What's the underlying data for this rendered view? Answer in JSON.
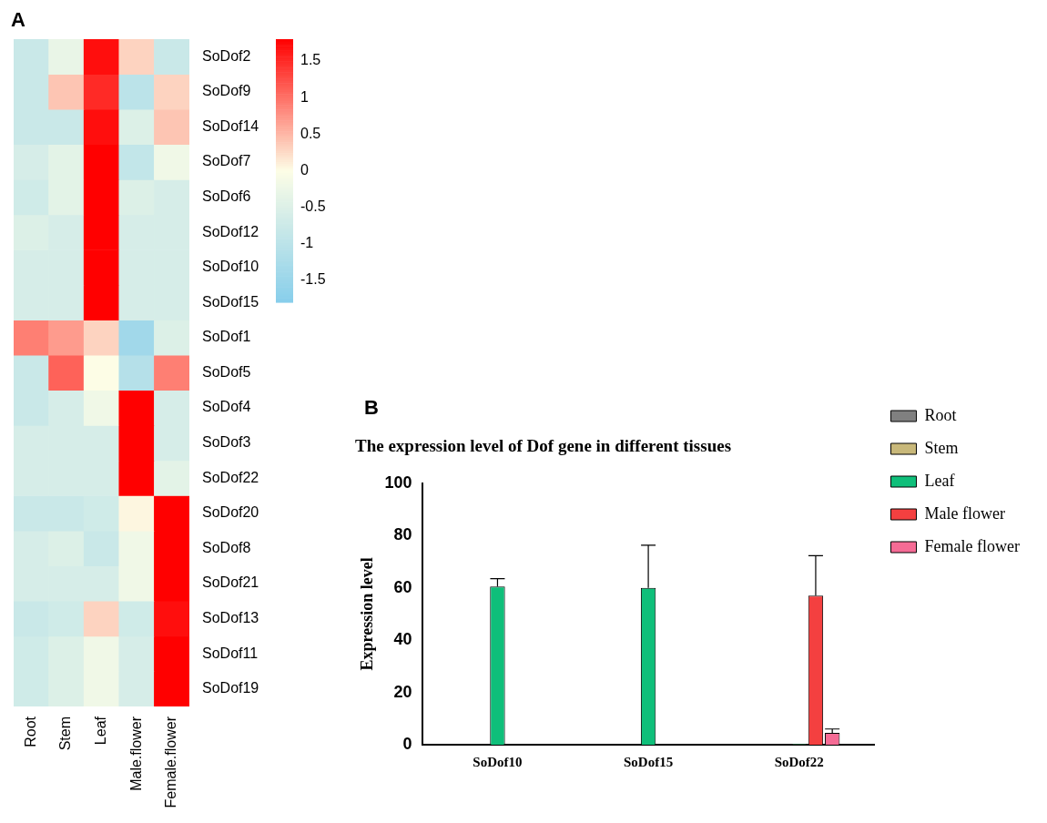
{
  "chart_data": [
    {
      "type": "heatmap",
      "annotations": [
        "A"
      ],
      "categories": [
        "Root",
        "Stem",
        "Leaf",
        "Male.flower",
        "Female.flower"
      ],
      "y_categories": [
        "SoDof2",
        "SoDof9",
        "SoDof14",
        "SoDof7",
        "SoDof6",
        "SoDof12",
        "SoDof10",
        "SoDof15",
        "SoDof1",
        "SoDof5",
        "SoDof4",
        "SoDof3",
        "SoDof22",
        "SoDof20",
        "SoDof8",
        "SoDof21",
        "SoDof13",
        "SoDof11",
        "SoDof19"
      ],
      "cells": [
        [
          -0.8,
          -0.3,
          1.7,
          0.3,
          -0.8
        ],
        [
          -0.8,
          0.4,
          1.5,
          -1.0,
          0.3
        ],
        [
          -0.8,
          -0.8,
          1.7,
          -0.5,
          0.4
        ],
        [
          -0.6,
          -0.4,
          1.8,
          -0.9,
          -0.2
        ],
        [
          -0.7,
          -0.4,
          1.8,
          -0.5,
          -0.6
        ],
        [
          -0.5,
          -0.6,
          1.8,
          -0.6,
          -0.6
        ],
        [
          -0.6,
          -0.6,
          1.8,
          -0.6,
          -0.6
        ],
        [
          -0.6,
          -0.6,
          1.8,
          -0.6,
          -0.6
        ],
        [
          0.9,
          0.7,
          0.3,
          -1.4,
          -0.5
        ],
        [
          -0.8,
          1.1,
          0.0,
          -1.1,
          0.9
        ],
        [
          -0.8,
          -0.6,
          -0.2,
          1.8,
          -0.6
        ],
        [
          -0.6,
          -0.6,
          -0.6,
          1.8,
          -0.6
        ],
        [
          -0.6,
          -0.6,
          -0.6,
          1.8,
          -0.4
        ],
        [
          -0.8,
          -0.8,
          -0.7,
          0.05,
          1.8
        ],
        [
          -0.6,
          -0.5,
          -0.8,
          -0.2,
          1.8
        ],
        [
          -0.6,
          -0.6,
          -0.6,
          -0.2,
          1.8
        ],
        [
          -0.8,
          -0.7,
          0.3,
          -0.7,
          1.7
        ],
        [
          -0.7,
          -0.5,
          -0.2,
          -0.6,
          1.8
        ],
        [
          -0.7,
          -0.5,
          -0.2,
          -0.6,
          1.8
        ]
      ],
      "clim": [
        -1.8,
        1.8
      ],
      "cticks": [
        -1.5,
        -1,
        -0.5,
        0,
        0.5,
        1,
        1.5
      ]
    },
    {
      "type": "bar",
      "annotations": [
        "B"
      ],
      "title": "The expression level of Dof gene in different tissues",
      "ylabel": "Expression level",
      "categories": [
        "SoDof10",
        "SoDof15",
        "SoDof22"
      ],
      "series": [
        {
          "name": "Root",
          "color": "#808080",
          "values": [
            0,
            0,
            null
          ]
        },
        {
          "name": "Stem",
          "color": "#c8b87a",
          "values": [
            0,
            0,
            null
          ]
        },
        {
          "name": "Leaf",
          "color": "#0fbf7a",
          "values": [
            60.5,
            60,
            0.3
          ],
          "errors": [
            [
              60.5,
              63.5
            ],
            [
              60,
              76.3
            ],
            null
          ]
        },
        {
          "name": "Male flower",
          "color": "#f44040",
          "values": [
            0,
            0,
            57
          ],
          "errors": [
            null,
            null,
            [
              57,
              72.3
            ]
          ]
        },
        {
          "name": "Female flower",
          "color": "#f56b95",
          "values": [
            0,
            0,
            4.5
          ],
          "errors": [
            null,
            null,
            [
              4.5,
              6
            ]
          ]
        }
      ],
      "ylim": [
        0,
        100
      ],
      "yticks": [
        0,
        20,
        40,
        60,
        80,
        100
      ],
      "grid": false,
      "legend": "right"
    }
  ]
}
